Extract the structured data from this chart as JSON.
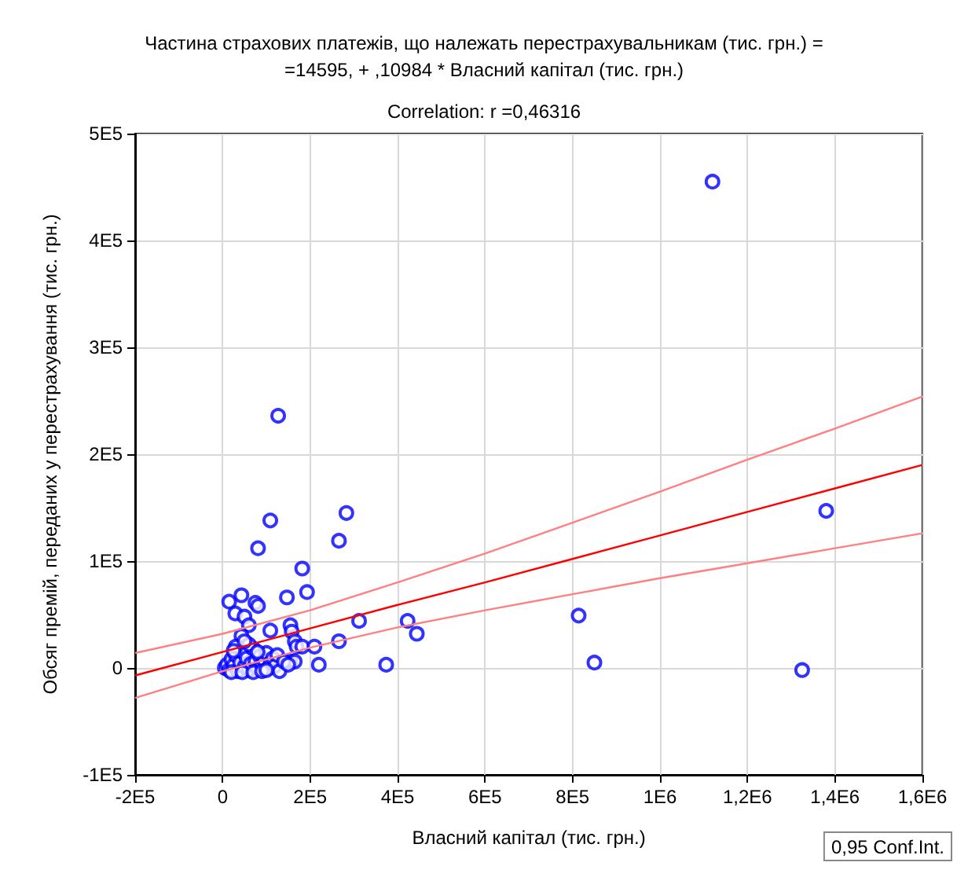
{
  "chart_data": {
    "type": "scatter",
    "title": "Частина страхових платежів, що належать перестрахувальникам (тис. грн.) =\n=14595, + ,10984 * Власний капітал (тис. грн.)",
    "subtitle": "Correlation: r =0,46316",
    "xlabel": "Власний капітал (тис. грн.)",
    "ylabel": "Обсяг премій, переданих у перестрахування (тис. грн.)",
    "annotations": [
      "0,95 Conf.Int."
    ],
    "xlim": [
      -200000,
      1600000
    ],
    "xticks": [
      {
        "value": -200000,
        "label": "-2E5"
      },
      0,
      {
        "value": 200000,
        "label": "2E5"
      },
      {
        "value": 400000,
        "label": "4E5"
      },
      {
        "value": 600000,
        "label": "6E5"
      },
      {
        "value": 800000,
        "label": "8E5"
      },
      {
        "value": 1000000,
        "label": "1E6"
      },
      {
        "value": 1200000,
        "label": "1,2E6"
      },
      {
        "value": 1400000,
        "label": "1,4E6"
      },
      {
        "value": 1600000,
        "label": "1,6E6"
      }
    ],
    "ylim": [
      -100000,
      500000
    ],
    "yticks": [
      {
        "value": -100000,
        "label": "-1E5"
      },
      0,
      {
        "value": 100000,
        "label": "1E5"
      },
      {
        "value": 200000,
        "label": "2E5"
      },
      {
        "value": 300000,
        "label": "3E5"
      },
      {
        "value": 400000,
        "label": "4E5"
      },
      {
        "value": 500000,
        "label": "5E5"
      }
    ],
    "grid": true,
    "marker": "circle",
    "line_style": "solid",
    "series": [
      {
        "color": "#0000ff",
        "x": [
          1120000,
          127000,
          1380000,
          283000,
          109000,
          266000,
          81000,
          182000,
          193000,
          147000,
          15000,
          43000,
          75000,
          81000,
          29000,
          50000,
          60000,
          109000,
          43000,
          155000,
          158000,
          165000,
          169000,
          182000,
          210000,
          266000,
          312000,
          423000,
          444000,
          220000,
          374000,
          155000,
          165000,
          814000,
          1325000,
          850000,
          5000,
          10000,
          15000,
          20000,
          25000,
          30000,
          35000,
          40000,
          45000,
          50000,
          55000,
          60000,
          65000,
          70000,
          75000,
          80000,
          85000,
          90000,
          95000,
          100000,
          105000,
          110000,
          115000,
          120000,
          125000,
          130000,
          20000,
          30000,
          45000,
          60000,
          70000,
          90000,
          140000,
          150000,
          25000,
          50000,
          80000,
          100000
        ],
        "values": [
          455000,
          236000,
          147000,
          145000,
          138000,
          119000,
          112000,
          93000,
          71000,
          66000,
          62000,
          68000,
          61000,
          58000,
          51000,
          48000,
          40000,
          35000,
          30000,
          40000,
          34000,
          25000,
          20000,
          20000,
          20000,
          25000,
          44000,
          44000,
          32000,
          3000,
          3000,
          6000,
          6000,
          49000,
          -2000,
          5000,
          0,
          3000,
          -2000,
          8000,
          2000,
          12000,
          -3000,
          5000,
          15000,
          1000,
          9000,
          -2000,
          4000,
          18000,
          6000,
          -1000,
          11000,
          3000,
          7000,
          14000,
          0,
          5000,
          9000,
          2000,
          12000,
          -3000,
          -4000,
          20000,
          -4000,
          22000,
          -4000,
          -3000,
          6000,
          3000,
          16000,
          25000,
          15000,
          -2000
        ]
      },
      {
        "type": "line",
        "color": "#ff0000",
        "marker": "none",
        "x": [
          -200000,
          0,
          200000,
          400000,
          600000,
          800000,
          1000000,
          1200000,
          1400000,
          1600000
        ],
        "values": [
          -7000,
          15000,
          37000,
          59000,
          80000,
          102000,
          124000,
          146000,
          168000,
          190000
        ]
      },
      {
        "type": "line",
        "color": "#ff8080",
        "marker": "none",
        "x": [
          -200000,
          0,
          200000,
          400000,
          600000,
          800000,
          1000000,
          1200000,
          1400000,
          1600000
        ],
        "values": [
          14000,
          32000,
          54000,
          80000,
          107000,
          136000,
          165000,
          195000,
          224000,
          254000
        ]
      },
      {
        "type": "line",
        "color": "#ff8080",
        "marker": "none",
        "x": [
          -200000,
          0,
          200000,
          400000,
          600000,
          800000,
          1000000,
          1200000,
          1400000,
          1600000
        ],
        "values": [
          -28000,
          -3000,
          19000,
          38000,
          54000,
          69000,
          84000,
          98000,
          112000,
          126000
        ]
      }
    ]
  }
}
